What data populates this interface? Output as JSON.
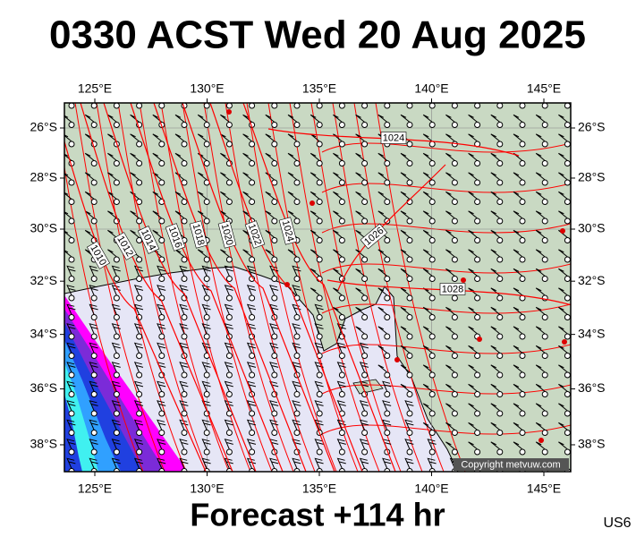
{
  "header": {
    "title": "0330 ACST Wed 20 Aug 2025"
  },
  "footer": {
    "forecast": "Forecast +114 hr",
    "code": "US6"
  },
  "map": {
    "copyright": "Copyright metvuw.com",
    "lon_ticks": [
      {
        "value": 125,
        "label": "125°E"
      },
      {
        "value": 130,
        "label": "130°E"
      },
      {
        "value": 135,
        "label": "135°E"
      },
      {
        "value": 140,
        "label": "140°E"
      },
      {
        "value": 145,
        "label": "145°E"
      }
    ],
    "lat_ticks": [
      {
        "value": -26,
        "label": "26°S"
      },
      {
        "value": -28,
        "label": "28°S"
      },
      {
        "value": -30,
        "label": "30°S"
      },
      {
        "value": -32,
        "label": "32°S"
      },
      {
        "value": -34,
        "label": "34°S"
      },
      {
        "value": -36,
        "label": "36°S"
      },
      {
        "value": -38,
        "label": "38°S"
      }
    ],
    "isobars": [
      1010,
      1012,
      1014,
      1016,
      1018,
      1020,
      1022,
      1024,
      1024,
      1026,
      1028
    ]
  }
}
